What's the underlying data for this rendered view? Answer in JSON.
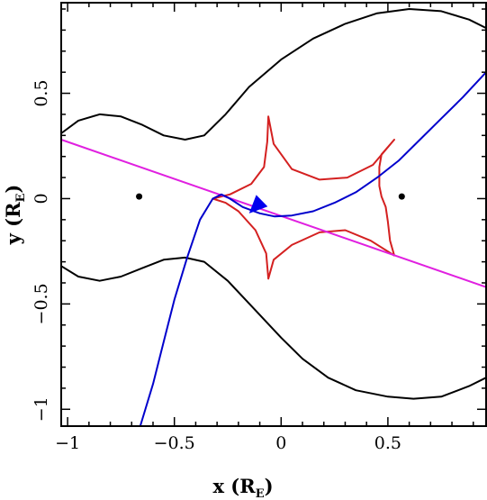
{
  "chart_data": {
    "type": "line",
    "xlabel": {
      "main": "x (R",
      "sub": "E",
      "close": ")"
    },
    "ylabel": {
      "main": "y (R",
      "sub": "E",
      "close": ")"
    },
    "xlim": [
      -1.03,
      0.96
    ],
    "ylim": [
      -1.08,
      0.93
    ],
    "x_ticks": [
      {
        "value": -1,
        "label": "−1"
      },
      {
        "value": -0.5,
        "label": "−0.5"
      },
      {
        "value": 0,
        "label": "0"
      },
      {
        "value": 0.5,
        "label": "0.5"
      }
    ],
    "y_ticks": [
      {
        "value": -1,
        "label": "−1"
      },
      {
        "value": -0.5,
        "label": "−0.5"
      },
      {
        "value": 0,
        "label": "0"
      },
      {
        "value": 0.5,
        "label": "0.5"
      }
    ],
    "grid": false,
    "lenses": [
      {
        "x": -0.665,
        "y": 0.01
      },
      {
        "x": 0.565,
        "y": 0.01
      }
    ],
    "series": [
      {
        "id": "critical-curve-upper",
        "color": "#000000",
        "points": [
          [
            -1.03,
            0.31
          ],
          [
            -0.95,
            0.37
          ],
          [
            -0.85,
            0.4
          ],
          [
            -0.75,
            0.39
          ],
          [
            -0.65,
            0.35
          ],
          [
            -0.55,
            0.3
          ],
          [
            -0.45,
            0.28
          ],
          [
            -0.36,
            0.3
          ],
          [
            -0.26,
            0.4
          ],
          [
            -0.15,
            0.53
          ],
          [
            0.0,
            0.66
          ],
          [
            0.15,
            0.76
          ],
          [
            0.3,
            0.83
          ],
          [
            0.45,
            0.88
          ],
          [
            0.6,
            0.9
          ],
          [
            0.75,
            0.89
          ],
          [
            0.88,
            0.85
          ],
          [
            0.96,
            0.81
          ]
        ]
      },
      {
        "id": "critical-curve-lower",
        "color": "#000000",
        "points": [
          [
            -1.03,
            -0.32
          ],
          [
            -0.95,
            -0.37
          ],
          [
            -0.85,
            -0.39
          ],
          [
            -0.75,
            -0.37
          ],
          [
            -0.65,
            -0.33
          ],
          [
            -0.55,
            -0.29
          ],
          [
            -0.45,
            -0.28
          ],
          [
            -0.36,
            -0.3
          ],
          [
            -0.25,
            -0.39
          ],
          [
            -0.12,
            -0.53
          ],
          [
            0.0,
            -0.66
          ],
          [
            0.1,
            -0.76
          ],
          [
            0.22,
            -0.85
          ],
          [
            0.35,
            -0.91
          ],
          [
            0.5,
            -0.94
          ],
          [
            0.62,
            -0.95
          ],
          [
            0.75,
            -0.94
          ],
          [
            0.88,
            -0.89
          ],
          [
            0.96,
            -0.85
          ]
        ]
      },
      {
        "id": "caustic",
        "color": "#d42020",
        "closed": true,
        "points": [
          [
            -0.06,
            0.39
          ],
          [
            -0.035,
            0.26
          ],
          [
            0.05,
            0.14
          ],
          [
            0.18,
            0.09
          ],
          [
            0.31,
            0.1
          ],
          [
            0.43,
            0.16
          ],
          [
            0.53,
            0.28
          ],
          [
            0.47,
            0.21
          ],
          [
            0.46,
            0.15
          ],
          [
            0.46,
            0.06
          ],
          [
            0.47,
            0.01
          ],
          [
            0.49,
            -0.04
          ],
          [
            0.5,
            -0.11
          ],
          [
            0.51,
            -0.2
          ],
          [
            0.53,
            -0.27
          ],
          [
            0.42,
            -0.2
          ],
          [
            0.3,
            -0.15
          ],
          [
            0.18,
            -0.16
          ],
          [
            0.05,
            -0.22
          ],
          [
            -0.035,
            -0.29
          ],
          [
            -0.06,
            -0.38
          ],
          [
            -0.07,
            -0.26
          ],
          [
            -0.12,
            -0.15
          ],
          [
            -0.2,
            -0.06
          ],
          [
            -0.26,
            -0.02
          ],
          [
            -0.32,
            0.0
          ],
          [
            -0.24,
            0.02
          ],
          [
            -0.14,
            0.07
          ],
          [
            -0.08,
            0.15
          ],
          [
            -0.065,
            0.27
          ]
        ]
      },
      {
        "id": "source-trajectory",
        "color": "#e020e0",
        "points": [
          [
            -1.03,
            0.28
          ],
          [
            0.96,
            -0.42
          ]
        ]
      },
      {
        "id": "image-track",
        "color": "#0000cc",
        "points": [
          [
            -0.66,
            -1.08
          ],
          [
            -0.6,
            -0.88
          ],
          [
            -0.55,
            -0.68
          ],
          [
            -0.5,
            -0.48
          ],
          [
            -0.44,
            -0.28
          ],
          [
            -0.38,
            -0.1
          ],
          [
            -0.32,
            0.0
          ],
          [
            -0.28,
            0.02
          ],
          [
            -0.24,
            0.0
          ],
          [
            -0.18,
            -0.04
          ],
          [
            -0.1,
            -0.07
          ],
          [
            -0.03,
            -0.085
          ],
          [
            0.05,
            -0.08
          ],
          [
            0.15,
            -0.06
          ],
          [
            0.25,
            -0.02
          ],
          [
            0.35,
            0.03
          ],
          [
            0.45,
            0.1
          ],
          [
            0.55,
            0.18
          ],
          [
            0.65,
            0.28
          ],
          [
            0.75,
            0.38
          ],
          [
            0.85,
            0.48
          ],
          [
            0.96,
            0.6
          ]
        ]
      }
    ],
    "arrow": {
      "color": "#0000ee",
      "tip": [
        -0.15,
        -0.07
      ],
      "tail": [
        -0.08,
        0.0
      ]
    }
  }
}
